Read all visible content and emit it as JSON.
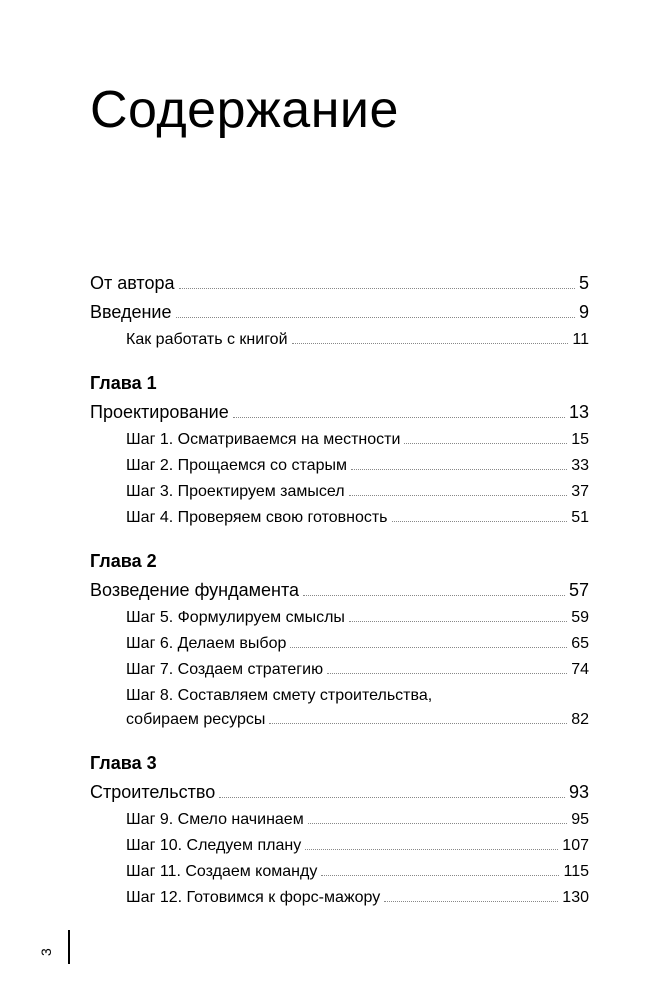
{
  "title": "Содержание",
  "page_number": "3",
  "entries": [
    {
      "type": "row",
      "level": 0,
      "label": "От автора",
      "page": "5"
    },
    {
      "type": "row",
      "level": 0,
      "label": "Введение",
      "page": "9"
    },
    {
      "type": "row",
      "level": 1,
      "label": "Как работать с книгой",
      "page": "11"
    },
    {
      "type": "chapter",
      "label": "Глава 1"
    },
    {
      "type": "row",
      "level": 0,
      "label": "Проектирование",
      "page": "13"
    },
    {
      "type": "row",
      "level": 1,
      "label": "Шаг 1. Осматриваемся на местности",
      "page": "15"
    },
    {
      "type": "row",
      "level": 1,
      "label": "Шаг 2. Прощаемся со старым",
      "page": "33"
    },
    {
      "type": "row",
      "level": 1,
      "label": "Шаг 3. Проектируем замысел",
      "page": "37"
    },
    {
      "type": "row",
      "level": 1,
      "label": "Шаг 4. Проверяем свою готовность",
      "page": "51"
    },
    {
      "type": "chapter",
      "label": "Глава 2"
    },
    {
      "type": "row",
      "level": 0,
      "label": "Возведение фундамента",
      "page": "57"
    },
    {
      "type": "row",
      "level": 1,
      "label": "Шаг 5. Формулируем смыслы",
      "page": "59"
    },
    {
      "type": "row",
      "level": 1,
      "label": "Шаг 6. Делаем выбор",
      "page": "65"
    },
    {
      "type": "row",
      "level": 1,
      "label": "Шаг 7. Создаем стратегию",
      "page": "74"
    },
    {
      "type": "multiline",
      "level": 1,
      "first": "Шаг 8. Составляем смету строительства,",
      "label": "собираем ресурсы",
      "page": "82"
    },
    {
      "type": "chapter",
      "label": "Глава 3"
    },
    {
      "type": "row",
      "level": 0,
      "label": "Строительство",
      "page": "93"
    },
    {
      "type": "row",
      "level": 1,
      "label": "Шаг 9. Смело начинаем",
      "page": "95"
    },
    {
      "type": "row",
      "level": 1,
      "label": "Шаг 10. Следуем плану",
      "page": "107"
    },
    {
      "type": "row",
      "level": 1,
      "label": "Шаг 11. Создаем команду",
      "page": "115"
    },
    {
      "type": "row",
      "level": 1,
      "label": "Шаг 12. Готовимся к форс-мажору",
      "page": "130"
    }
  ]
}
